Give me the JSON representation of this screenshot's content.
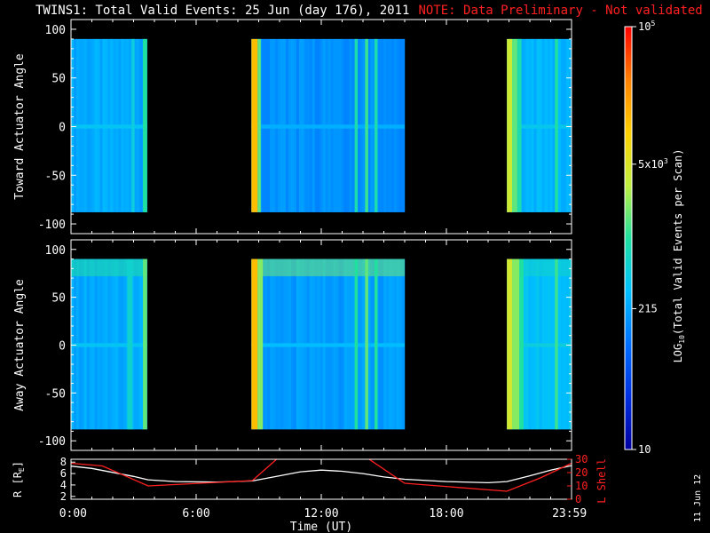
{
  "title": {
    "main": "TWINS1: Total Valid Events: 25 Jun (day 176), 2011",
    "note": "NOTE: Data Preliminary - Not validated"
  },
  "date_stamp": "11 Jun 12",
  "colors": {
    "background": "#000000",
    "text": "#ffffff",
    "note": "#ff2020",
    "r_line": "#ffffff",
    "lshell_line": "#ff2020",
    "colormap": [
      "#0000a0",
      "#0030e0",
      "#0070ff",
      "#00c0ff",
      "#20e0a0",
      "#c0f040",
      "#ffd000",
      "#ff8000",
      "#ff0000"
    ]
  },
  "chart_data": [
    {
      "type": "heatmap",
      "ylabel": "Toward Actuator Angle",
      "ylim": [
        -110,
        110
      ],
      "y_ticks": [
        100,
        50,
        0,
        -50,
        -100
      ],
      "x_range_hours": [
        0,
        24
      ],
      "angle_range": [
        -88,
        90
      ],
      "data_blocks": [
        {
          "start": 0.0,
          "end": 3.65,
          "base_level": 0.34,
          "center_band": 0.05,
          "stripes": [
            {
              "start": 2.9,
              "end": 3.05,
              "level": 0.42
            },
            {
              "start": 3.45,
              "end": 3.65,
              "level": 0.5
            }
          ]
        },
        {
          "start": 8.65,
          "end": 16.0,
          "base_level": 0.3,
          "center_band": 0.05,
          "stripes": [
            {
              "start": 8.65,
              "end": 8.95,
              "level": 0.78
            },
            {
              "start": 8.95,
              "end": 9.1,
              "level": 0.55
            },
            {
              "start": 13.6,
              "end": 13.75,
              "level": 0.48
            },
            {
              "start": 14.1,
              "end": 14.25,
              "level": 0.52
            },
            {
              "start": 14.55,
              "end": 14.7,
              "level": 0.48
            }
          ]
        },
        {
          "start": 20.9,
          "end": 24.0,
          "base_level": 0.36,
          "center_band": 0.04,
          "stripes": [
            {
              "start": 20.9,
              "end": 21.15,
              "level": 0.65
            },
            {
              "start": 21.15,
              "end": 21.4,
              "level": 0.55
            },
            {
              "start": 21.4,
              "end": 21.6,
              "level": 0.48
            },
            {
              "start": 23.2,
              "end": 23.35,
              "level": 0.5
            }
          ]
        }
      ]
    },
    {
      "type": "heatmap",
      "ylabel": "Away Actuator Angle",
      "ylim": [
        -110,
        110
      ],
      "y_ticks": [
        100,
        50,
        0,
        -50,
        -100
      ],
      "x_range_hours": [
        0,
        24
      ],
      "angle_range": [
        -88,
        90
      ],
      "data_blocks": [
        {
          "start": 0.0,
          "end": 3.65,
          "base_level": 0.34,
          "center_band": 0.05,
          "top_band": 0.5,
          "stripes": [
            {
              "start": 2.7,
              "end": 2.95,
              "level": 0.44
            },
            {
              "start": 3.45,
              "end": 3.65,
              "level": 0.55
            }
          ]
        },
        {
          "start": 8.65,
          "end": 16.0,
          "base_level": 0.32,
          "center_band": 0.05,
          "top_band": 0.56,
          "stripes": [
            {
              "start": 8.65,
              "end": 8.95,
              "level": 0.78
            },
            {
              "start": 8.95,
              "end": 9.2,
              "level": 0.58
            },
            {
              "start": 13.6,
              "end": 13.75,
              "level": 0.5
            },
            {
              "start": 14.1,
              "end": 14.25,
              "level": 0.55
            },
            {
              "start": 14.55,
              "end": 14.7,
              "level": 0.5
            }
          ]
        },
        {
          "start": 20.9,
          "end": 24.0,
          "base_level": 0.38,
          "center_band": 0.04,
          "top_band": 0.45,
          "stripes": [
            {
              "start": 20.9,
              "end": 21.15,
              "level": 0.66
            },
            {
              "start": 21.15,
              "end": 21.5,
              "level": 0.58
            },
            {
              "start": 21.5,
              "end": 21.7,
              "level": 0.5
            },
            {
              "start": 23.2,
              "end": 23.35,
              "level": 0.52
            }
          ]
        }
      ]
    },
    {
      "type": "line",
      "ylabel_left": "R [R",
      "ylabel_left_sub": "E",
      "ylabel_left_end": "]",
      "ylabel_right": "L Shell",
      "ylim_left": [
        1.5,
        8.5
      ],
      "ylim_right": [
        0,
        30
      ],
      "y_ticks_left": [
        8,
        6,
        4,
        2
      ],
      "y_ticks_right": [
        30,
        20,
        10,
        0
      ],
      "xlabel": "Time (UT)",
      "x_range_hours": [
        0,
        24
      ],
      "x_ticks": [
        {
          "h": 0.1,
          "label": "0:00"
        },
        {
          "h": 6,
          "label": "6:00"
        },
        {
          "h": 12,
          "label": "12:00"
        },
        {
          "h": 18,
          "label": "18:00"
        },
        {
          "h": 23.9,
          "label": "23:59"
        }
      ],
      "series": [
        {
          "axis": "left",
          "x": [
            0,
            1,
            2,
            3,
            3.7,
            5,
            7,
            8.7,
            10,
            11,
            12,
            13,
            14,
            15,
            16,
            18,
            20,
            20.9,
            22,
            23,
            24
          ],
          "y": [
            7.3,
            6.9,
            6.2,
            5.5,
            4.9,
            4.6,
            4.5,
            4.7,
            5.6,
            6.3,
            6.6,
            6.4,
            6.0,
            5.4,
            5.0,
            4.6,
            4.4,
            4.6,
            5.6,
            6.6,
            7.4
          ]
        },
        {
          "axis": "right",
          "x": [
            0,
            1.5,
            3.7,
            8.7,
            10,
            10.5
          ],
          "y": [
            27,
            25,
            10,
            14,
            32,
            40
          ]
        },
        {
          "axis": "right",
          "x": [
            13.8,
            14.2,
            16,
            20.9,
            22.5,
            24
          ],
          "y": [
            40,
            31,
            12,
            6,
            16,
            27
          ]
        }
      ]
    }
  ],
  "colorbar": {
    "label_main": "LOG",
    "label_sub": "10",
    "label_rest": "(Total Valid Events per Scan)",
    "ticks": [
      {
        "value": 100000,
        "base": "10",
        "exp": "5",
        "mult": ""
      },
      {
        "value": 5000,
        "base": "10",
        "exp": "3",
        "mult": "5x"
      },
      {
        "value": 215,
        "base": "215",
        "exp": "",
        "mult": ""
      },
      {
        "value": 10,
        "base": "10",
        "exp": "",
        "mult": ""
      }
    ],
    "log_range": [
      1,
      5
    ]
  }
}
